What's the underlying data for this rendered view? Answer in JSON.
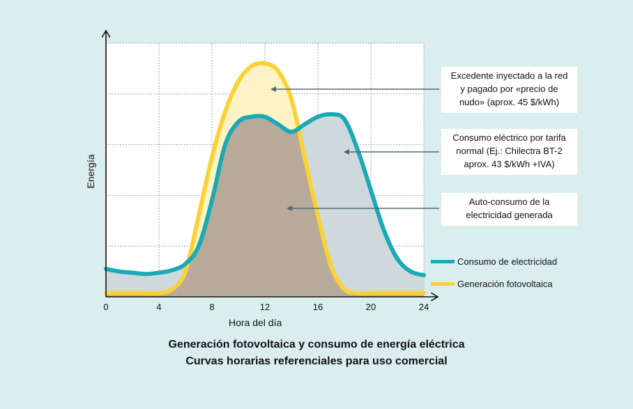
{
  "chart_data": {
    "type": "area",
    "xlabel": "Hora del día",
    "ylabel": "Energía",
    "xlim": [
      0,
      24
    ],
    "ylim": [
      0,
      10
    ],
    "x_ticks": [
      0,
      4,
      8,
      12,
      16,
      20,
      24
    ],
    "grid": true,
    "legend_position": "right",
    "series": [
      {
        "name": "Consumo de electricidad",
        "color": "#18aab5",
        "x": [
          0,
          1,
          2,
          3,
          4,
          5,
          6,
          7,
          8,
          9,
          10,
          11,
          12,
          13,
          14,
          15,
          16,
          17,
          18,
          19,
          20,
          21,
          22,
          23,
          24
        ],
        "y": [
          1.1,
          1.0,
          0.95,
          0.9,
          0.95,
          1.05,
          1.3,
          2.0,
          3.8,
          6.0,
          6.9,
          7.1,
          7.1,
          6.8,
          6.5,
          6.8,
          7.1,
          7.2,
          7.0,
          5.8,
          4.2,
          2.6,
          1.5,
          1.0,
          0.85
        ]
      },
      {
        "name": "Generación fotovoltaica",
        "color": "#fad234",
        "x": [
          0,
          1,
          2,
          3,
          4,
          5,
          6,
          7,
          8,
          9,
          10,
          11,
          12,
          13,
          14,
          15,
          16,
          17,
          18,
          19,
          20,
          21,
          22,
          23,
          24
        ],
        "y": [
          0.15,
          0.15,
          0.15,
          0.15,
          0.15,
          0.3,
          1.0,
          3.2,
          5.5,
          7.3,
          8.5,
          9.1,
          9.2,
          8.9,
          7.8,
          5.5,
          3.2,
          1.2,
          0.3,
          0.15,
          0.15,
          0.15,
          0.15,
          0.15,
          0.15
        ]
      }
    ],
    "annotations": [
      {
        "id": "excedente",
        "lines": [
          "Excedente inyectado a la red",
          "y pagado por «precio de",
          "nudo» (aprox. 45 $/kWh)"
        ]
      },
      {
        "id": "consumo_tarifa",
        "lines": [
          "Consumo eléctrico por tarifa",
          "normal (Ej.: Chilectra BT-2",
          "aprox. 43 $/kWh +IVA)"
        ]
      },
      {
        "id": "autoconsumo",
        "lines": [
          "Auto-consumo de la",
          "electricidad generada"
        ]
      }
    ],
    "colors": {
      "background": "#dbeeee",
      "plot_background": "#ffffff",
      "surplus_fill": "#fdf3c4",
      "self_consumption_fill": "#b8aa9b",
      "grid_consumption_fill": "#cdd9dc",
      "arrow": "#4f6971"
    }
  },
  "caption": {
    "line1": "Generación fotovoltaica y consumo de energía eléctrica",
    "line2": "Curvas horarias referenciales para uso comercial"
  }
}
